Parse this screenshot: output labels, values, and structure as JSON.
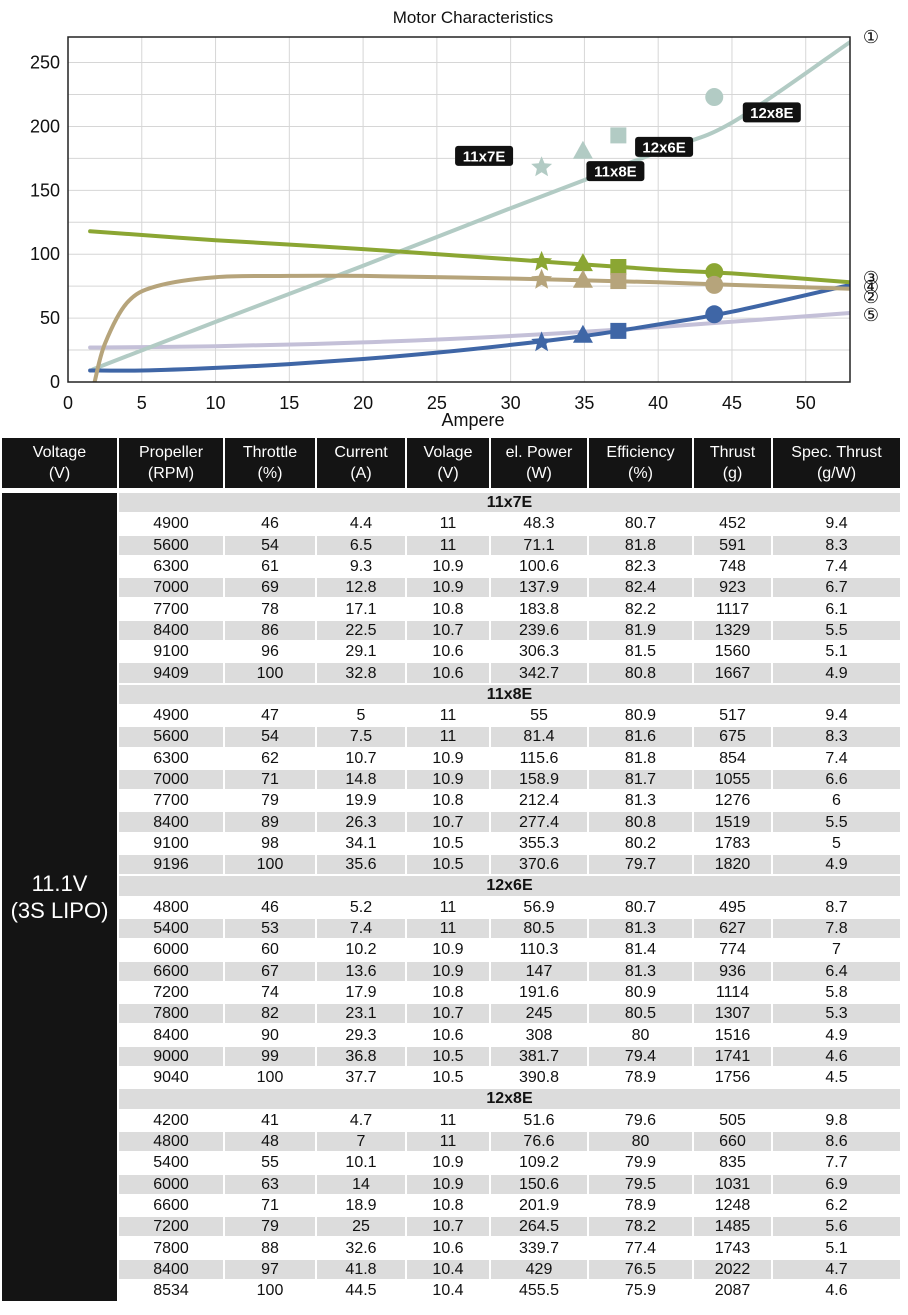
{
  "chart_data": {
    "type": "line",
    "title": "Motor Characteristics",
    "xlabel": "Ampere",
    "ylabel": "",
    "xlim": [
      0,
      53
    ],
    "ylim": [
      0,
      270
    ],
    "x_ticks": [
      "0",
      "5",
      "10",
      "15",
      "20",
      "25",
      "30",
      "35",
      "40",
      "45",
      "50"
    ],
    "y_ticks": [
      "0",
      "50",
      "100",
      "150",
      "200",
      "250"
    ],
    "grid": true,
    "series": [
      {
        "name": "①",
        "color": "#b2cbc4",
        "points": [
          [
            1.7,
            10
          ],
          [
            10,
            47
          ],
          [
            20,
            91
          ],
          [
            30,
            136
          ],
          [
            40,
            180
          ],
          [
            45,
            203
          ],
          [
            53,
            266
          ]
        ]
      },
      {
        "name": "③",
        "color": "#8ba633",
        "points": [
          [
            1.5,
            118
          ],
          [
            10,
            111
          ],
          [
            20,
            104
          ],
          [
            30,
            96
          ],
          [
            40,
            88
          ],
          [
            45,
            85
          ],
          [
            53,
            78
          ]
        ]
      },
      {
        "name": "④",
        "color": "#b6a47b",
        "points": [
          [
            1.8,
            0
          ],
          [
            2.5,
            30
          ],
          [
            4,
            62
          ],
          [
            6,
            75
          ],
          [
            10,
            82
          ],
          [
            15,
            83
          ],
          [
            20,
            83
          ],
          [
            30,
            81
          ],
          [
            40,
            78
          ],
          [
            45,
            76
          ],
          [
            53,
            73
          ]
        ]
      },
      {
        "name": "②",
        "color": "#3f66a6",
        "points": [
          [
            1.5,
            9
          ],
          [
            5,
            9
          ],
          [
            10,
            11
          ],
          [
            15,
            14
          ],
          [
            20,
            18
          ],
          [
            25,
            23
          ],
          [
            30,
            29
          ],
          [
            35,
            36
          ],
          [
            40,
            45
          ],
          [
            45,
            55
          ],
          [
            53,
            76
          ]
        ]
      },
      {
        "name": "⑤",
        "color": "#c4c0d8",
        "points": [
          [
            1.5,
            27
          ],
          [
            10,
            28
          ],
          [
            20,
            31
          ],
          [
            30,
            36
          ],
          [
            40,
            43
          ],
          [
            53,
            54
          ]
        ]
      }
    ],
    "markers": [
      {
        "label": "11x7E",
        "shape": "star",
        "x": 32.1,
        "values": [
          168,
          94,
          80,
          31
        ]
      },
      {
        "label": "11x8E",
        "shape": "triangle",
        "x": 34.9,
        "values": [
          181,
          93,
          80,
          37
        ]
      },
      {
        "label": "12x6E",
        "shape": "square",
        "x": 37.3,
        "values": [
          193,
          90,
          79,
          40
        ]
      },
      {
        "label": "12x8E",
        "shape": "circle",
        "x": 43.8,
        "values": [
          223,
          86,
          76,
          53
        ]
      }
    ],
    "marker_labels": [
      {
        "text": "11x7E",
        "x": 28.2,
        "y": 177
      },
      {
        "text": "11x8E",
        "x": 37.1,
        "y": 165
      },
      {
        "text": "12x6E",
        "x": 40.4,
        "y": 184
      },
      {
        "text": "12x8E",
        "x": 47.7,
        "y": 211
      }
    ],
    "curve_label_values": [
      {
        "text": "①",
        "y": 268
      },
      {
        "text": "③",
        "y": 82
      },
      {
        "text": "④",
        "y": 77
      },
      {
        "text": "②",
        "y": 70
      },
      {
        "text": "⑤",
        "y": 53
      }
    ]
  },
  "table": {
    "headers": [
      [
        "Voltage",
        "(V)"
      ],
      [
        "Propeller",
        "(RPM)"
      ],
      [
        "Throttle",
        "(%)"
      ],
      [
        "Current",
        "(A)"
      ],
      [
        "Volage",
        "(V)"
      ],
      [
        "el. Power",
        "(W)"
      ],
      [
        "Efficiency",
        "(%)"
      ],
      [
        "Thrust",
        "(g)"
      ],
      [
        "Spec. Thrust",
        "(g/W)"
      ]
    ],
    "voltage_lines": [
      "11.1V",
      "(3S LIPO)"
    ],
    "groups": [
      {
        "name": "11x7E",
        "rows": [
          [
            "4900",
            "46",
            "4.4",
            "11",
            "48.3",
            "80.7",
            "452",
            "9.4"
          ],
          [
            "5600",
            "54",
            "6.5",
            "11",
            "71.1",
            "81.8",
            "591",
            "8.3"
          ],
          [
            "6300",
            "61",
            "9.3",
            "10.9",
            "100.6",
            "82.3",
            "748",
            "7.4"
          ],
          [
            "7000",
            "69",
            "12.8",
            "10.9",
            "137.9",
            "82.4",
            "923",
            "6.7"
          ],
          [
            "7700",
            "78",
            "17.1",
            "10.8",
            "183.8",
            "82.2",
            "1117",
            "6.1"
          ],
          [
            "8400",
            "86",
            "22.5",
            "10.7",
            "239.6",
            "81.9",
            "1329",
            "5.5"
          ],
          [
            "9100",
            "96",
            "29.1",
            "10.6",
            "306.3",
            "81.5",
            "1560",
            "5.1"
          ],
          [
            "9409",
            "100",
            "32.8",
            "10.6",
            "342.7",
            "80.8",
            "1667",
            "4.9"
          ]
        ]
      },
      {
        "name": "11x8E",
        "rows": [
          [
            "4900",
            "47",
            "5",
            "11",
            "55",
            "80.9",
            "517",
            "9.4"
          ],
          [
            "5600",
            "54",
            "7.5",
            "11",
            "81.4",
            "81.6",
            "675",
            "8.3"
          ],
          [
            "6300",
            "62",
            "10.7",
            "10.9",
            "115.6",
            "81.8",
            "854",
            "7.4"
          ],
          [
            "7000",
            "71",
            "14.8",
            "10.9",
            "158.9",
            "81.7",
            "1055",
            "6.6"
          ],
          [
            "7700",
            "79",
            "19.9",
            "10.8",
            "212.4",
            "81.3",
            "1276",
            "6"
          ],
          [
            "8400",
            "89",
            "26.3",
            "10.7",
            "277.4",
            "80.8",
            "1519",
            "5.5"
          ],
          [
            "9100",
            "98",
            "34.1",
            "10.5",
            "355.3",
            "80.2",
            "1783",
            "5"
          ],
          [
            "9196",
            "100",
            "35.6",
            "10.5",
            "370.6",
            "79.7",
            "1820",
            "4.9"
          ]
        ]
      },
      {
        "name": "12x6E",
        "rows": [
          [
            "4800",
            "46",
            "5.2",
            "11",
            "56.9",
            "80.7",
            "495",
            "8.7"
          ],
          [
            "5400",
            "53",
            "7.4",
            "11",
            "80.5",
            "81.3",
            "627",
            "7.8"
          ],
          [
            "6000",
            "60",
            "10.2",
            "10.9",
            "110.3",
            "81.4",
            "774",
            "7"
          ],
          [
            "6600",
            "67",
            "13.6",
            "10.9",
            "147",
            "81.3",
            "936",
            "6.4"
          ],
          [
            "7200",
            "74",
            "17.9",
            "10.8",
            "191.6",
            "80.9",
            "1114",
            "5.8"
          ],
          [
            "7800",
            "82",
            "23.1",
            "10.7",
            "245",
            "80.5",
            "1307",
            "5.3"
          ],
          [
            "8400",
            "90",
            "29.3",
            "10.6",
            "308",
            "80",
            "1516",
            "4.9"
          ],
          [
            "9000",
            "99",
            "36.8",
            "10.5",
            "381.7",
            "79.4",
            "1741",
            "4.6"
          ],
          [
            "9040",
            "100",
            "37.7",
            "10.5",
            "390.8",
            "78.9",
            "1756",
            "4.5"
          ]
        ]
      },
      {
        "name": "12x8E",
        "rows": [
          [
            "4200",
            "41",
            "4.7",
            "11",
            "51.6",
            "79.6",
            "505",
            "9.8"
          ],
          [
            "4800",
            "48",
            "7",
            "11",
            "76.6",
            "80",
            "660",
            "8.6"
          ],
          [
            "5400",
            "55",
            "10.1",
            "10.9",
            "109.2",
            "79.9",
            "835",
            "7.7"
          ],
          [
            "6000",
            "63",
            "14",
            "10.9",
            "150.6",
            "79.5",
            "1031",
            "6.9"
          ],
          [
            "6600",
            "71",
            "18.9",
            "10.8",
            "201.9",
            "78.9",
            "1248",
            "6.2"
          ],
          [
            "7200",
            "79",
            "25",
            "10.7",
            "264.5",
            "78.2",
            "1485",
            "5.6"
          ],
          [
            "7800",
            "88",
            "32.6",
            "10.6",
            "339.7",
            "77.4",
            "1743",
            "5.1"
          ],
          [
            "8400",
            "97",
            "41.8",
            "10.4",
            "429",
            "76.5",
            "2022",
            "4.7"
          ],
          [
            "8534",
            "100",
            "44.5",
            "10.4",
            "455.5",
            "75.9",
            "2087",
            "4.6"
          ]
        ]
      }
    ]
  }
}
